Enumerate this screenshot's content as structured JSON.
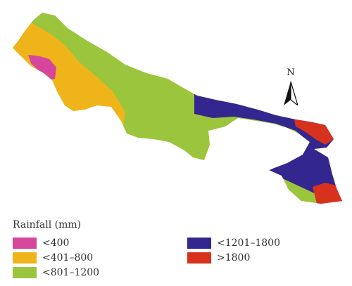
{
  "map": {
    "north_label": "N",
    "legend": {
      "title": "Rainfall (mm)",
      "classes": [
        {
          "label": "<400",
          "color": "#d5469c"
        },
        {
          "label": "<401–800",
          "color": "#f0b41b"
        },
        {
          "label": "<801–1200",
          "color": "#9bc53c"
        },
        {
          "label": "<1201–1800",
          "color": "#34268f"
        },
        {
          "label": ">1800",
          "color": "#d6321e"
        }
      ]
    }
  }
}
